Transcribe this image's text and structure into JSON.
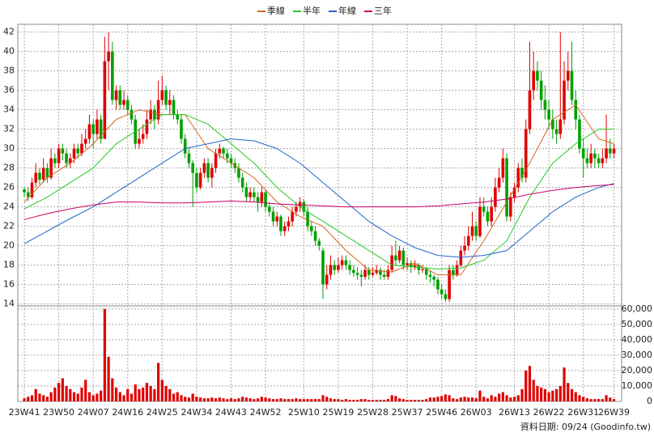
{
  "chart_data": {
    "type": "candlestick",
    "legend": [
      "季線",
      "半年",
      "年線",
      "三年"
    ],
    "source": "資料日期: 09/24 (Goodinfo.tw)",
    "xlim": [
      -1.7,
      156
    ],
    "xticks": [
      {
        "value": 0,
        "label": "23W41"
      },
      {
        "value": 9,
        "label": "23W50"
      },
      {
        "value": 18,
        "label": "24W07"
      },
      {
        "value": 27,
        "label": "24W16"
      },
      {
        "value": 36,
        "label": "24W25"
      },
      {
        "value": 45,
        "label": "24W34"
      },
      {
        "value": 54,
        "label": "24W43"
      },
      {
        "value": 63,
        "label": "24W52"
      },
      {
        "value": 73,
        "label": "25W10"
      },
      {
        "value": 82,
        "label": "25W19"
      },
      {
        "value": 91,
        "label": "25W28"
      },
      {
        "value": 100,
        "label": "25W37"
      },
      {
        "value": 109,
        "label": "25W46"
      },
      {
        "value": 118,
        "label": "26W03"
      },
      {
        "value": 128,
        "label": "26W13"
      },
      {
        "value": 137,
        "label": "26W22"
      },
      {
        "value": 146,
        "label": "26W31"
      },
      {
        "value": 154,
        "label": "26W39"
      }
    ],
    "ylim": [
      13.8,
      42.8
    ],
    "yticks": [
      14,
      16,
      18,
      20,
      22,
      24,
      26,
      28,
      30,
      32,
      34,
      36,
      38,
      40,
      42
    ],
    "grid": true,
    "up_color": "#e00000",
    "down_color": "#00a000",
    "ohlc": [
      [
        25.8,
        26,
        25,
        25.5
      ],
      [
        25.5,
        26,
        24.6,
        25
      ],
      [
        25,
        27,
        24.8,
        26.5
      ],
      [
        26.5,
        28.5,
        26,
        27.5
      ],
      [
        27.5,
        28,
        26.3,
        26.8
      ],
      [
        26.8,
        29,
        26.5,
        28
      ],
      [
        28,
        28.5,
        26.5,
        27
      ],
      [
        27,
        30,
        26.8,
        29
      ],
      [
        29,
        29.5,
        28,
        28.5
      ],
      [
        28.5,
        30.5,
        28,
        30
      ],
      [
        30,
        30.5,
        28.8,
        29.5
      ],
      [
        29.5,
        30,
        28,
        28.5
      ],
      [
        28.5,
        29.5,
        28,
        29
      ],
      [
        29,
        30.5,
        28.5,
        30
      ],
      [
        30,
        30.5,
        29,
        29.5
      ],
      [
        29.5,
        31.5,
        29.2,
        30.5
      ],
      [
        30.5,
        32,
        30,
        31
      ],
      [
        31,
        33.5,
        30.5,
        32.5
      ],
      [
        32.5,
        33,
        30,
        31.5
      ],
      [
        31.5,
        34,
        31,
        33
      ],
      [
        33,
        33.5,
        30.5,
        31
      ],
      [
        31,
        41.5,
        31,
        39
      ],
      [
        39,
        42,
        36,
        40
      ],
      [
        40,
        41,
        34.5,
        35
      ],
      [
        35,
        36.5,
        34,
        36
      ],
      [
        36,
        36.5,
        34,
        34.5
      ],
      [
        34.5,
        36,
        34,
        35
      ],
      [
        35,
        35.5,
        33.5,
        34
      ],
      [
        34,
        34.5,
        32.5,
        33
      ],
      [
        33,
        33.5,
        30,
        30.5
      ],
      [
        30.5,
        32,
        30,
        31
      ],
      [
        31,
        32.5,
        30.5,
        31.5
      ],
      [
        31.5,
        34,
        31,
        33
      ],
      [
        33,
        35,
        32.5,
        34
      ],
      [
        34,
        34.5,
        32,
        33
      ],
      [
        33,
        37,
        32.5,
        35
      ],
      [
        35,
        37.5,
        34.5,
        36
      ],
      [
        36,
        36.5,
        34,
        34.5
      ],
      [
        34.5,
        36,
        33.5,
        35
      ],
      [
        35,
        35.5,
        33,
        33.5
      ],
      [
        33.5,
        34,
        32.5,
        33
      ],
      [
        33,
        33.5,
        30.5,
        31
      ],
      [
        31,
        31.5,
        29,
        29.5
      ],
      [
        29.5,
        30,
        28,
        28.5
      ],
      [
        28.5,
        28.8,
        24,
        27.5
      ],
      [
        27.5,
        28,
        25.5,
        26
      ],
      [
        26,
        28,
        25.8,
        27.5
      ],
      [
        27.5,
        29,
        27,
        28.5
      ],
      [
        28.5,
        29,
        26.5,
        27
      ],
      [
        27,
        28.5,
        26,
        28
      ],
      [
        28,
        30,
        27.5,
        29.5
      ],
      [
        29.5,
        30.5,
        29,
        30
      ],
      [
        30,
        30.2,
        29,
        29.5
      ],
      [
        29.5,
        30,
        28.5,
        29
      ],
      [
        29,
        29.5,
        28,
        28.5
      ],
      [
        28.5,
        29,
        27.5,
        28
      ],
      [
        28,
        28.5,
        26.5,
        27
      ],
      [
        27,
        27.5,
        25.5,
        26
      ],
      [
        26,
        26.5,
        24.5,
        25
      ],
      [
        25,
        26,
        24.5,
        25.5
      ],
      [
        25.5,
        26,
        24.5,
        25
      ],
      [
        25,
        25.5,
        23.5,
        24.5
      ],
      [
        24.5,
        26,
        24,
        25.5
      ],
      [
        25.5,
        25.8,
        23.5,
        24
      ],
      [
        24,
        24.5,
        23,
        23.5
      ],
      [
        23.5,
        24,
        22,
        22.5
      ],
      [
        22.5,
        23.5,
        22,
        23
      ],
      [
        23,
        23.2,
        21,
        21.5
      ],
      [
        21.5,
        22.5,
        21,
        22
      ],
      [
        22,
        23,
        21.5,
        22.5
      ],
      [
        22.5,
        24,
        22,
        23.5
      ],
      [
        23.5,
        24.5,
        23,
        24
      ],
      [
        24,
        25,
        23.5,
        24.5
      ],
      [
        24.5,
        24.8,
        23,
        23.5
      ],
      [
        23.5,
        24,
        21.5,
        22
      ],
      [
        22,
        22.5,
        21,
        21.5
      ],
      [
        21.5,
        22,
        20,
        20.5
      ],
      [
        20.5,
        20.8,
        19.5,
        20
      ],
      [
        19.5,
        19.8,
        14.5,
        16
      ],
      [
        16,
        18,
        15.5,
        17
      ],
      [
        17,
        19,
        16.5,
        18
      ],
      [
        18,
        18.5,
        17,
        17.5
      ],
      [
        17.5,
        18.8,
        17.2,
        18
      ],
      [
        18,
        19,
        17.5,
        18.5
      ],
      [
        18.5,
        19,
        17.5,
        18
      ],
      [
        18,
        18.5,
        17,
        17.5
      ],
      [
        17.5,
        18,
        16.8,
        17.2
      ],
      [
        17.2,
        17.8,
        16.5,
        17
      ],
      [
        17,
        17.5,
        15.8,
        16.8
      ],
      [
        16.8,
        18,
        16.5,
        17.5
      ],
      [
        17.5,
        17.8,
        16.5,
        17
      ],
      [
        17,
        17.8,
        16.8,
        17.2
      ],
      [
        17.2,
        18,
        17,
        17.5
      ],
      [
        17.5,
        17.8,
        16.5,
        17
      ],
      [
        17,
        17.5,
        16.5,
        16.8
      ],
      [
        16.8,
        18,
        16.5,
        17.5
      ],
      [
        17.5,
        20,
        17.2,
        19
      ],
      [
        19,
        20.5,
        18,
        18.5
      ],
      [
        18.5,
        20,
        18.2,
        19.5
      ],
      [
        19.5,
        19.8,
        17.5,
        18
      ],
      [
        18,
        18.8,
        17.5,
        18.2
      ],
      [
        18.2,
        18.5,
        17.2,
        17.8
      ],
      [
        17.8,
        18.5,
        17.5,
        18
      ],
      [
        18,
        18.2,
        17,
        17.5
      ],
      [
        17.5,
        18,
        17.2,
        17.6
      ],
      [
        17.6,
        17.8,
        16.5,
        17
      ],
      [
        17,
        17.5,
        16.2,
        16.8
      ],
      [
        16.8,
        17,
        15.8,
        16.5
      ],
      [
        16.5,
        16.8,
        15,
        15.5
      ],
      [
        15.5,
        16,
        14.5,
        15
      ],
      [
        15,
        15.5,
        14.2,
        14.5
      ],
      [
        14.5,
        18,
        14.2,
        17.5
      ],
      [
        17.5,
        18,
        16.5,
        17
      ],
      [
        17,
        18.5,
        16.8,
        18
      ],
      [
        18,
        20,
        17.8,
        19.5
      ],
      [
        19.5,
        21,
        19,
        20
      ],
      [
        20,
        22,
        19.5,
        21
      ],
      [
        21,
        23.5,
        20.5,
        22
      ],
      [
        22,
        22.5,
        20.5,
        21
      ],
      [
        21,
        25,
        20.8,
        24
      ],
      [
        24,
        25,
        23,
        23.5
      ],
      [
        23.5,
        24,
        22,
        22.5
      ],
      [
        22.5,
        25,
        22,
        24
      ],
      [
        24,
        27,
        23.5,
        26
      ],
      [
        26,
        28,
        25.5,
        27
      ],
      [
        27,
        30,
        26.5,
        29
      ],
      [
        29,
        29.5,
        22.5,
        23
      ],
      [
        23,
        25.5,
        22.5,
        25
      ],
      [
        25,
        26.5,
        24.5,
        26
      ],
      [
        26,
        28.5,
        25.5,
        28
      ],
      [
        28,
        29,
        26.5,
        27
      ],
      [
        27,
        33,
        26.5,
        32
      ],
      [
        32,
        41,
        31.5,
        36
      ],
      [
        36,
        40,
        35,
        38
      ],
      [
        38,
        39,
        36,
        37
      ],
      [
        37,
        38,
        34,
        35
      ],
      [
        35,
        36.5,
        33,
        34
      ],
      [
        34,
        35,
        32,
        33
      ],
      [
        33,
        34,
        31,
        32
      ],
      [
        32,
        33,
        30.5,
        31.5
      ],
      [
        31.5,
        42,
        31,
        33
      ],
      [
        33,
        39,
        32.5,
        37
      ],
      [
        37,
        40,
        36,
        38
      ],
      [
        38,
        41,
        34.5,
        35
      ],
      [
        35,
        36,
        32,
        33
      ],
      [
        33,
        33.5,
        29.5,
        30
      ],
      [
        30,
        31,
        27,
        29
      ],
      [
        29,
        30,
        28,
        28.5
      ],
      [
        28.5,
        30.5,
        28,
        29.5
      ],
      [
        29.5,
        30,
        28,
        29
      ],
      [
        29,
        29.5,
        28,
        28.5
      ],
      [
        28.5,
        30,
        28,
        29
      ],
      [
        29,
        33.5,
        28.5,
        30
      ],
      [
        30,
        31,
        29,
        29.5
      ],
      [
        29.5,
        30.5,
        29,
        30
      ]
    ],
    "x": [
      0,
      6,
      12,
      18,
      24,
      30,
      36,
      42,
      48,
      54,
      60,
      66,
      72,
      78,
      84,
      90,
      96,
      102,
      108,
      114,
      120,
      126,
      132,
      138,
      144,
      150,
      154
    ],
    "series": [
      {
        "name": "季線",
        "color": "#d2691e",
        "values": [
          24.5,
          27,
          28.5,
          30.5,
          33,
          34,
          33.5,
          33.5,
          30,
          28.5,
          27,
          24.5,
          23,
          22,
          19.5,
          17.5,
          17.3,
          18.2,
          17,
          17,
          20.5,
          24.5,
          28.5,
          33,
          34.5,
          31,
          30.5
        ]
      },
      {
        "name": "半年",
        "color": "#22cc22",
        "values": [
          23.8,
          25,
          26.5,
          28,
          30.5,
          32,
          33.5,
          33.5,
          32.5,
          30.5,
          28.5,
          26,
          24,
          22.5,
          21,
          19.5,
          18,
          17.8,
          17.6,
          17.7,
          18.5,
          20.5,
          25,
          28.5,
          30.5,
          32,
          32
        ]
      },
      {
        "name": "年線",
        "color": "#2266cc",
        "values": [
          20.2,
          21.5,
          22.8,
          24,
          25.5,
          27,
          28.5,
          30,
          30.5,
          31,
          30.8,
          30,
          28.5,
          26.5,
          24.5,
          22.5,
          21,
          19.8,
          19,
          18.8,
          19,
          19.5,
          21.5,
          23.5,
          25,
          26,
          26.4
        ]
      },
      {
        "name": "三年",
        "color": "#cc0066",
        "values": [
          22.7,
          23.3,
          23.8,
          24.2,
          24.5,
          24.5,
          24.4,
          24.4,
          24.5,
          24.6,
          24.5,
          24.3,
          24.2,
          24.1,
          24,
          24,
          24,
          24,
          24.1,
          24.3,
          24.5,
          24.8,
          25.3,
          25.7,
          26,
          26.2,
          26.3
        ]
      }
    ],
    "volume": {
      "color": "#e00000",
      "ylim": [
        0,
        62000
      ],
      "yticks": [
        {
          "value": 0,
          "label": "0"
        },
        {
          "value": 10000,
          "label": "10,000"
        },
        {
          "value": 20000,
          "label": "20,000"
        },
        {
          "value": 30000,
          "label": "30,000"
        },
        {
          "value": 40000,
          "label": "40,000"
        },
        {
          "value": 50000,
          "label": "50,000"
        },
        {
          "value": 60000,
          "label": "60,000"
        }
      ],
      "values": [
        2000,
        3000,
        4000,
        8000,
        5000,
        4000,
        3000,
        6000,
        9000,
        12000,
        15000,
        10000,
        8000,
        6000,
        5000,
        9000,
        14000,
        6000,
        4000,
        5000,
        7000,
        60000,
        29000,
        15000,
        9000,
        6000,
        4000,
        8000,
        5000,
        11000,
        8000,
        9000,
        12000,
        10000,
        8000,
        25000,
        14000,
        10000,
        8000,
        5000,
        6000,
        4000,
        3000,
        2500,
        5000,
        3000,
        2500,
        2000,
        2000,
        2500,
        2000,
        2500,
        2000,
        1500,
        2000,
        1500,
        2000,
        3000,
        2500,
        2000,
        1500,
        2000,
        3000,
        2500,
        2000,
        1500,
        1500,
        2000,
        1500,
        1500,
        1500,
        2000,
        1500,
        1500,
        1500,
        1500,
        1500,
        1500,
        4000,
        3000,
        2000,
        1500,
        1500,
        1000,
        1500,
        1000,
        1000,
        1000,
        1500,
        1500,
        1000,
        1000,
        1000,
        1000,
        1000,
        1500,
        4000,
        3500,
        2000,
        1500,
        1000,
        1000,
        1000,
        1000,
        1000,
        1500,
        2500,
        2500,
        3000,
        3500,
        4500,
        4000,
        2000,
        1500,
        2500,
        3000,
        2500,
        2500,
        2000,
        7000,
        3000,
        2000,
        4000,
        3000,
        5000,
        6000,
        4000,
        2500,
        3000,
        4000,
        8000,
        20000,
        23000,
        14000,
        10000,
        9000,
        8000,
        6000,
        7000,
        8000,
        10000,
        22000,
        12000,
        8000,
        6000,
        4000,
        3000,
        2000,
        1500,
        1500,
        1500,
        1500,
        4000,
        2500,
        1500
      ]
    }
  }
}
